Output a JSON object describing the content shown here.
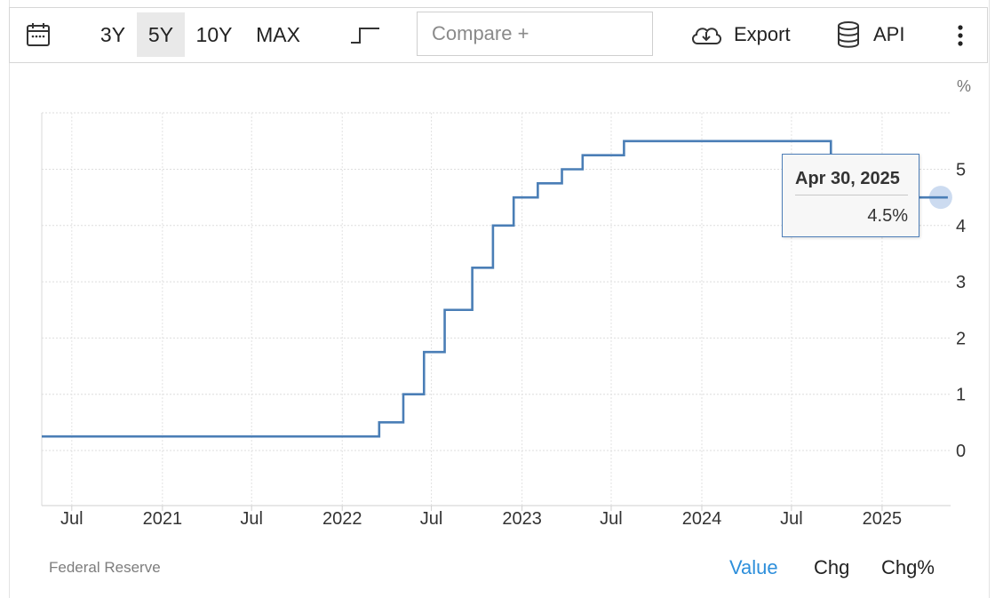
{
  "toolbar": {
    "calendar_icon": "calendar-icon",
    "ranges": [
      "3Y",
      "5Y",
      "10Y",
      "MAX"
    ],
    "active_range": "5Y",
    "step_icon": "step-chart-icon",
    "compare_placeholder": "Compare +",
    "export_label": "Export",
    "api_label": "API",
    "more_icon": "more-vertical-icon"
  },
  "chart_data": {
    "type": "line",
    "interpolation": "step-after",
    "series": [
      {
        "color": "#4a7eb6",
        "points": [
          [
            "2020-05-01",
            0.25
          ],
          [
            "2022-03-17",
            0.5
          ],
          [
            "2022-05-05",
            1.0
          ],
          [
            "2022-06-16",
            1.75
          ],
          [
            "2022-07-28",
            2.5
          ],
          [
            "2022-09-22",
            3.25
          ],
          [
            "2022-11-03",
            4.0
          ],
          [
            "2022-12-15",
            4.5
          ],
          [
            "2023-02-02",
            4.75
          ],
          [
            "2023-03-23",
            5.0
          ],
          [
            "2023-05-04",
            5.25
          ],
          [
            "2023-07-27",
            5.5
          ],
          [
            "2024-09-19",
            4.5
          ],
          [
            "2025-04-30",
            4.5
          ]
        ]
      }
    ],
    "x_ticks": [
      {
        "date": "2020-07-01",
        "label": "Jul"
      },
      {
        "date": "2021-01-01",
        "label": "2021"
      },
      {
        "date": "2021-07-01",
        "label": "Jul"
      },
      {
        "date": "2022-01-01",
        "label": "2022"
      },
      {
        "date": "2022-07-01",
        "label": "Jul"
      },
      {
        "date": "2023-01-01",
        "label": "2023"
      },
      {
        "date": "2023-07-01",
        "label": "Jul"
      },
      {
        "date": "2024-01-01",
        "label": "2024"
      },
      {
        "date": "2024-07-01",
        "label": "Jul"
      },
      {
        "date": "2025-01-01",
        "label": "2025"
      }
    ],
    "y_ticks": [
      0,
      1,
      2,
      3,
      4,
      5
    ],
    "y_unit": "%",
    "ylim": [
      -1,
      6
    ],
    "xlim": [
      "2020-05-01",
      "2025-05-20"
    ],
    "grid": true,
    "tooltip": {
      "date": "Apr 30, 2025",
      "value": "4.5%"
    }
  },
  "footer": {
    "source": "Federal Reserve",
    "tabs": [
      "Value",
      "Chg",
      "Chg%"
    ],
    "active_tab": "Value"
  }
}
